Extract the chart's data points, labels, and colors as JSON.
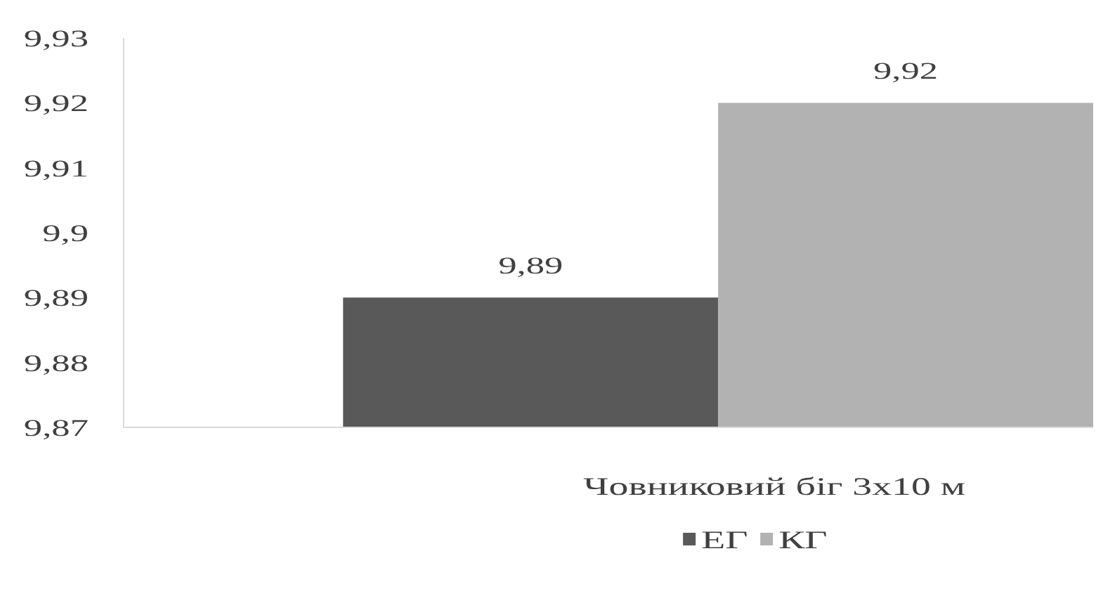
{
  "chart_data": {
    "type": "bar",
    "categories": [
      "Човниковий біг 3х10 м"
    ],
    "series": [
      {
        "name": "ЕГ",
        "color": "#595959",
        "values": [
          9.89
        ],
        "value_labels": [
          "9,89"
        ]
      },
      {
        "name": "КГ",
        "color": "#b2b2b2",
        "values": [
          9.92
        ],
        "value_labels": [
          "9,92"
        ]
      }
    ],
    "ylim": [
      9.87,
      9.93
    ],
    "yticks": [
      {
        "value": 9.87,
        "label": "9,87"
      },
      {
        "value": 9.88,
        "label": "9,88"
      },
      {
        "value": 9.89,
        "label": "9,89"
      },
      {
        "value": 9.9,
        "label": "9,9"
      },
      {
        "value": 9.91,
        "label": "9,91"
      },
      {
        "value": 9.92,
        "label": "9,92"
      },
      {
        "value": 9.93,
        "label": "9,93"
      }
    ],
    "legend": "bottom"
  }
}
